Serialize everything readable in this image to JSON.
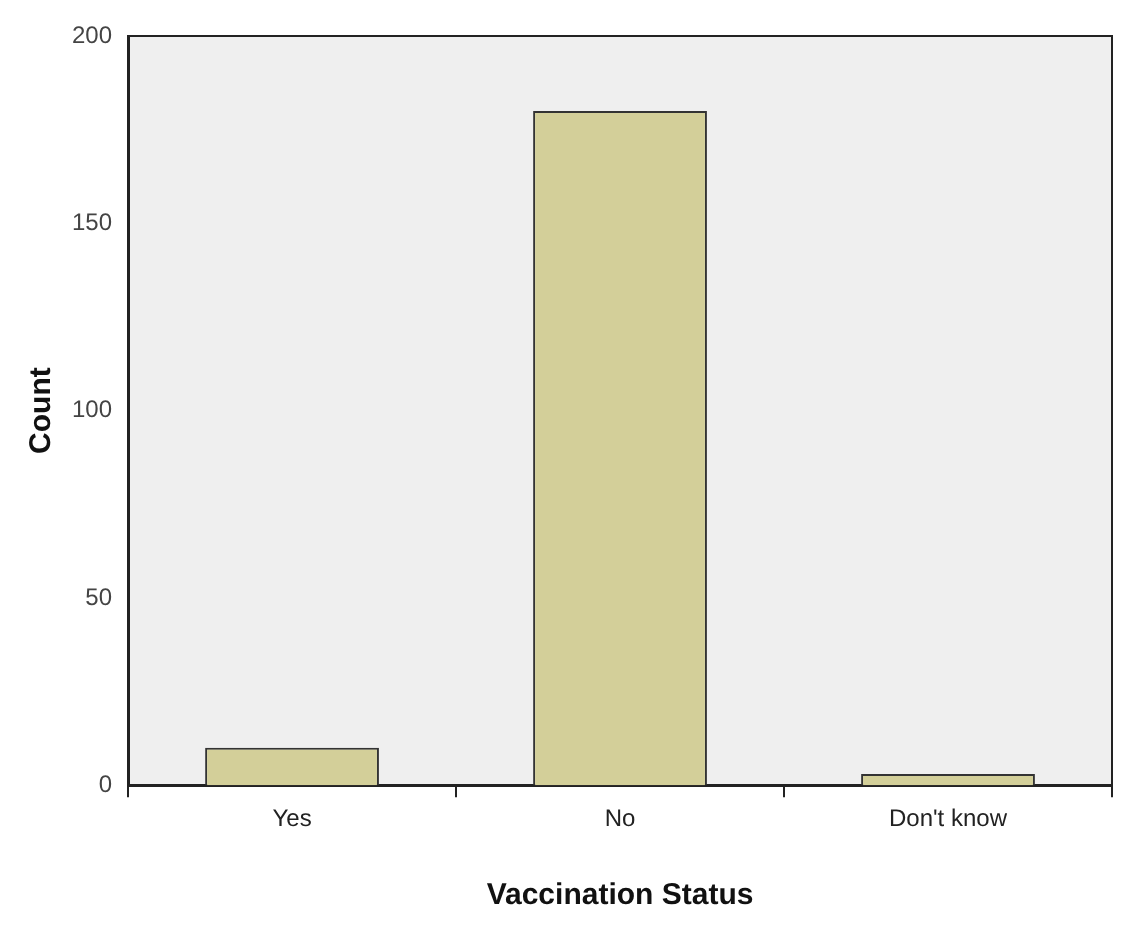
{
  "chart_data": {
    "type": "bar",
    "xlabel": "Vaccination Status",
    "ylabel": "Count",
    "categories": [
      "Yes",
      "No",
      "Don't know"
    ],
    "values": [
      10,
      180,
      3
    ],
    "color": "#d3cf99",
    "ylim": [
      0,
      200
    ],
    "yticks": [
      0,
      50,
      100,
      150,
      200
    ],
    "grid": false,
    "legend": false
  }
}
